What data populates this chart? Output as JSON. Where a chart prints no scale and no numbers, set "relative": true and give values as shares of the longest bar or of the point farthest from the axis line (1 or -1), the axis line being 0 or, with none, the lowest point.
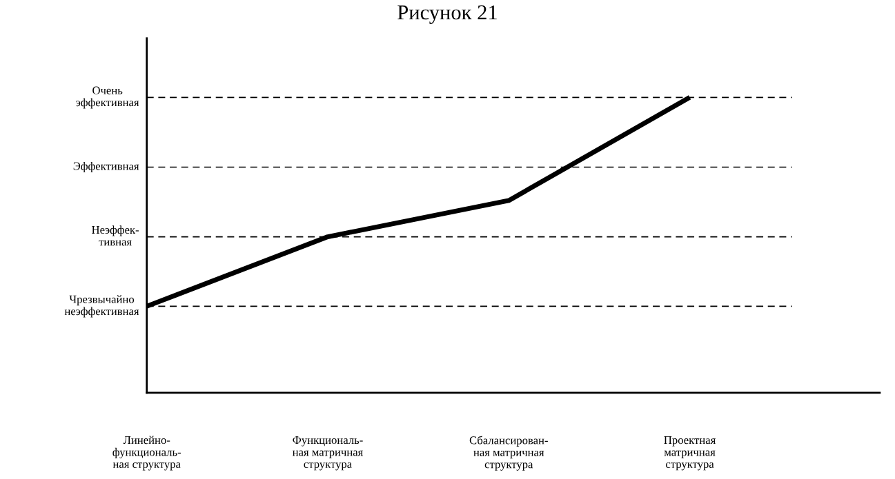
{
  "chart_data": {
    "type": "line",
    "title": "Рисунок 21",
    "relative": true,
    "categories": [
      "Линейно-\nфункциональ-\nная структура",
      "Функциональ-\nная матричная\nструктура",
      "Сбалансирован-\nная матричная\nструктура",
      "Проектная\nматричная\nструктура"
    ],
    "series": [
      {
        "color": "#000000",
        "values": [
          0.293,
          0.528,
          0.651,
          1
        ]
      }
    ],
    "ref_lines": [
      {
        "axis": "y",
        "value": 0.293,
        "label": "Чрезвычайно\nнеэффективная",
        "color": "#000000",
        "line_style": "dashed"
      },
      {
        "axis": "y",
        "value": 0.528,
        "label": "Неэффек-\nтивная",
        "color": "#000000",
        "line_style": "dashed"
      },
      {
        "axis": "y",
        "value": 0.764,
        "label": "Эффективная",
        "color": "#000000",
        "line_style": "dashed"
      },
      {
        "axis": "y",
        "value": 1,
        "label": "Очень\nэффективная",
        "color": "#000000",
        "line_style": "dashed"
      }
    ],
    "marker": "none",
    "line_style": "solid"
  }
}
